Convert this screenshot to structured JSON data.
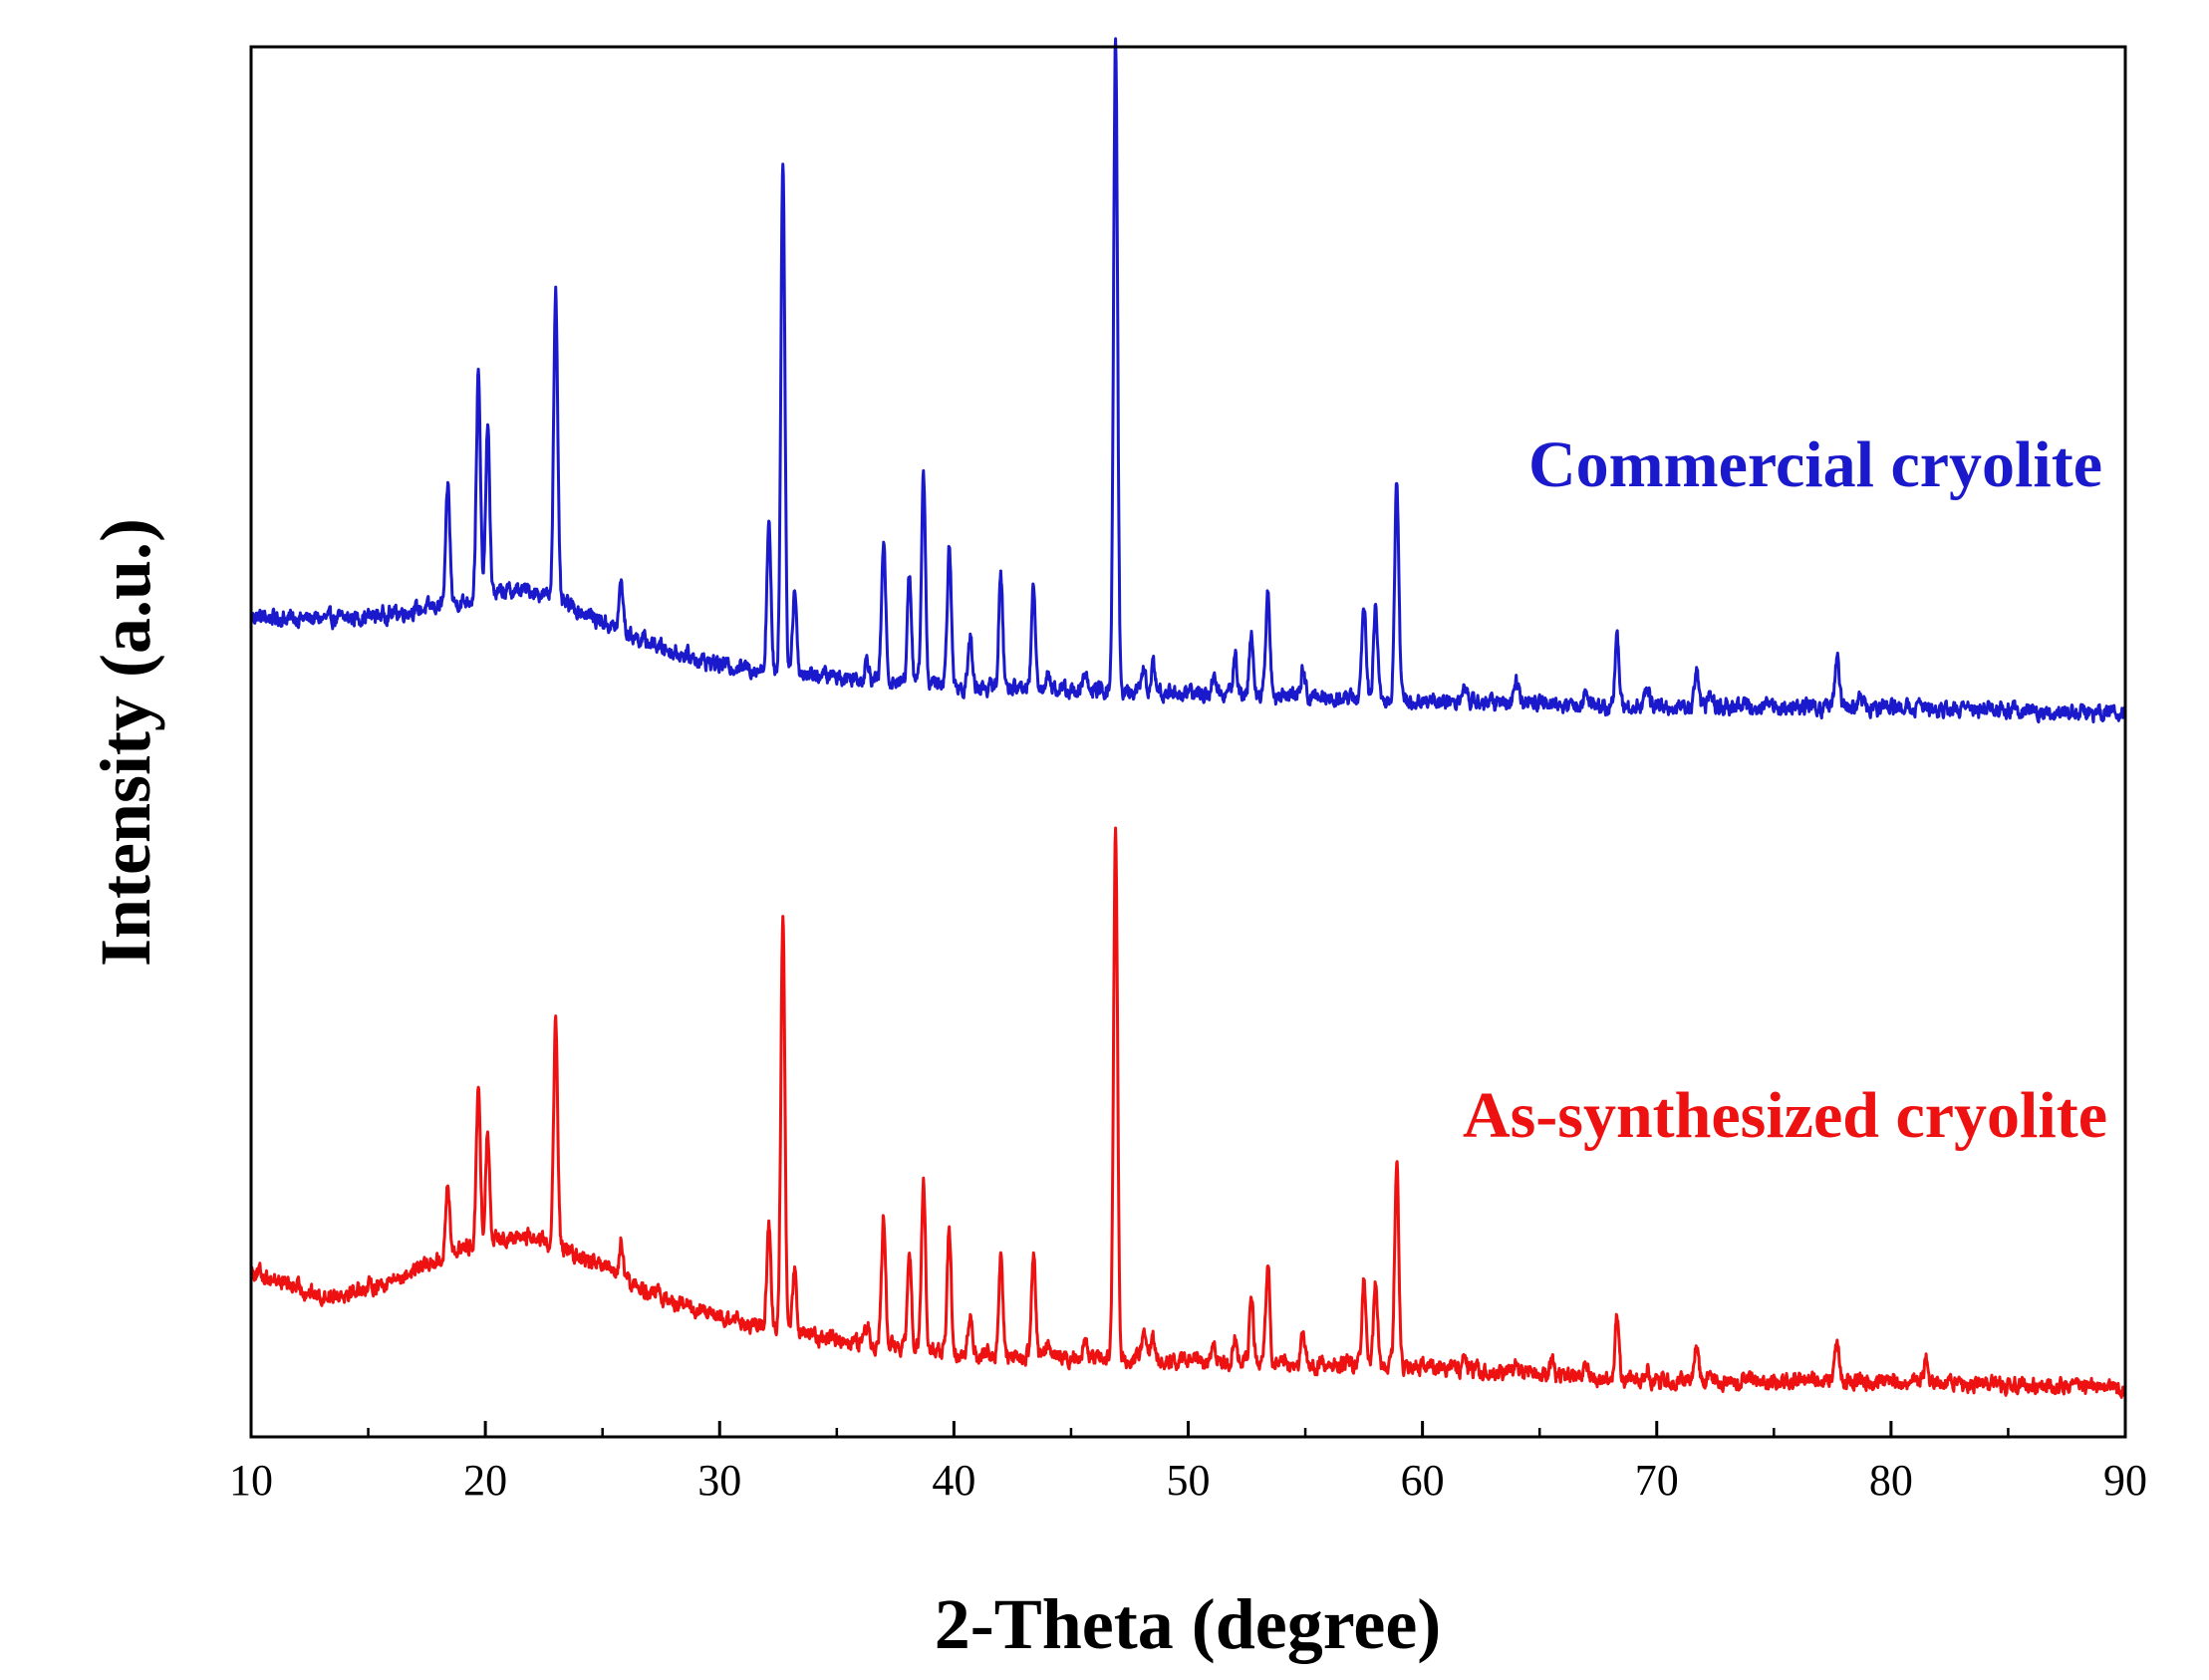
{
  "chart_data": {
    "type": "line",
    "title": "",
    "xlabel": "2-Theta (degree)",
    "ylabel": "Intensity (a.u.)",
    "xlim": [
      10,
      90
    ],
    "ylim": [
      0,
      100
    ],
    "grid": false,
    "x_ticks": [
      10,
      20,
      30,
      40,
      50,
      60,
      70,
      80,
      90
    ],
    "y_ticks_visible": false,
    "series": [
      {
        "name": "Commercial cryolite",
        "color": "#1a1acc",
        "baseline": [
          [
            10,
            59
          ],
          [
            16,
            58.5
          ],
          [
            19,
            58
          ],
          [
            22,
            58.5
          ],
          [
            25,
            57.5
          ],
          [
            30,
            55.5
          ],
          [
            33,
            55
          ],
          [
            40,
            54
          ],
          [
            50,
            53.5
          ],
          [
            60,
            53
          ],
          [
            70,
            52.5
          ],
          [
            80,
            52.5
          ],
          [
            90,
            52
          ]
        ],
        "hump": {
          "center": 21,
          "width": 3.2,
          "height": 2.5
        },
        "peaks": [
          {
            "x": 18.4,
            "height": 8.5
          },
          {
            "x": 19.7,
            "height": 16
          },
          {
            "x": 20.1,
            "height": 12
          },
          {
            "x": 23.0,
            "height": 22.5
          },
          {
            "x": 25.8,
            "height": 3.5
          },
          {
            "x": 32.1,
            "height": 10.5
          },
          {
            "x": 32.7,
            "height": 37
          },
          {
            "x": 33.2,
            "height": 6
          },
          {
            "x": 36.3,
            "height": 1.5
          },
          {
            "x": 37.0,
            "height": 10
          },
          {
            "x": 38.1,
            "height": 8
          },
          {
            "x": 38.7,
            "height": 15
          },
          {
            "x": 39.8,
            "height": 10
          },
          {
            "x": 40.7,
            "height": 3.5
          },
          {
            "x": 42.0,
            "height": 8
          },
          {
            "x": 43.4,
            "height": 7.5
          },
          {
            "x": 44.0,
            "height": 1.2
          },
          {
            "x": 45.6,
            "height": 1
          },
          {
            "x": 46.9,
            "height": 47
          },
          {
            "x": 48.1,
            "height": 1.5
          },
          {
            "x": 48.5,
            "height": 2
          },
          {
            "x": 51.1,
            "height": 1.5
          },
          {
            "x": 52.0,
            "height": 3
          },
          {
            "x": 52.7,
            "height": 4.5
          },
          {
            "x": 53.4,
            "height": 7.5
          },
          {
            "x": 54.9,
            "height": 2
          },
          {
            "x": 57.5,
            "height": 7
          },
          {
            "x": 58.0,
            "height": 7
          },
          {
            "x": 58.9,
            "height": 16
          },
          {
            "x": 61.8,
            "height": 1
          },
          {
            "x": 64.0,
            "height": 1.5
          },
          {
            "x": 67.0,
            "height": 1.2
          },
          {
            "x": 68.3,
            "height": 5
          },
          {
            "x": 69.6,
            "height": 1.5
          },
          {
            "x": 71.7,
            "height": 2.5
          },
          {
            "x": 72.3,
            "height": 1.2
          },
          {
            "x": 77.7,
            "height": 3.5
          },
          {
            "x": 78.7,
            "height": 1
          }
        ]
      },
      {
        "name": "As-synthesized cryolite",
        "color": "#ee1111",
        "baseline": [
          [
            10,
            12
          ],
          [
            13,
            10
          ],
          [
            16,
            10.5
          ],
          [
            19,
            11.5
          ],
          [
            22,
            12
          ],
          [
            25,
            11
          ],
          [
            30,
            8.5
          ],
          [
            33,
            7.5
          ],
          [
            40,
            6
          ],
          [
            50,
            5.5
          ],
          [
            60,
            5
          ],
          [
            70,
            4
          ],
          [
            80,
            4
          ],
          [
            90,
            3.5
          ]
        ],
        "hump": {
          "center": 21,
          "width": 3.2,
          "height": 2.5
        },
        "peaks": [
          {
            "x": 18.4,
            "height": 5
          },
          {
            "x": 19.7,
            "height": 11
          },
          {
            "x": 20.1,
            "height": 8
          },
          {
            "x": 23.0,
            "height": 16
          },
          {
            "x": 25.8,
            "height": 2.5
          },
          {
            "x": 32.1,
            "height": 7.5
          },
          {
            "x": 32.7,
            "height": 30
          },
          {
            "x": 33.2,
            "height": 4.5
          },
          {
            "x": 36.3,
            "height": 1.2
          },
          {
            "x": 37.0,
            "height": 9
          },
          {
            "x": 38.1,
            "height": 6.5
          },
          {
            "x": 38.7,
            "height": 12
          },
          {
            "x": 39.8,
            "height": 9
          },
          {
            "x": 40.7,
            "height": 3
          },
          {
            "x": 42.0,
            "height": 7
          },
          {
            "x": 43.4,
            "height": 7.5
          },
          {
            "x": 44.0,
            "height": 1
          },
          {
            "x": 45.6,
            "height": 1
          },
          {
            "x": 46.9,
            "height": 38
          },
          {
            "x": 48.1,
            "height": 1.5
          },
          {
            "x": 48.5,
            "height": 1.5
          },
          {
            "x": 51.1,
            "height": 1.2
          },
          {
            "x": 52.0,
            "height": 2
          },
          {
            "x": 52.7,
            "height": 5
          },
          {
            "x": 53.4,
            "height": 7
          },
          {
            "x": 54.9,
            "height": 2
          },
          {
            "x": 57.5,
            "height": 6
          },
          {
            "x": 58.0,
            "height": 6
          },
          {
            "x": 58.9,
            "height": 15
          },
          {
            "x": 61.8,
            "height": 1
          },
          {
            "x": 64.0,
            "height": 1
          },
          {
            "x": 65.5,
            "height": 1
          },
          {
            "x": 67.0,
            "height": 1
          },
          {
            "x": 68.3,
            "height": 4.5
          },
          {
            "x": 69.6,
            "height": 1.2
          },
          {
            "x": 71.7,
            "height": 2.5
          },
          {
            "x": 72.3,
            "height": 1
          },
          {
            "x": 77.7,
            "height": 3
          },
          {
            "x": 81.5,
            "height": 1.5
          }
        ]
      }
    ],
    "legend": [
      {
        "label": "Commercial cryolite",
        "color": "#1a1acc",
        "placement": "upper-right, above top trace"
      },
      {
        "label": "As-synthesized cryolite",
        "color": "#ee1111",
        "placement": "middle-right, above bottom trace"
      }
    ]
  }
}
